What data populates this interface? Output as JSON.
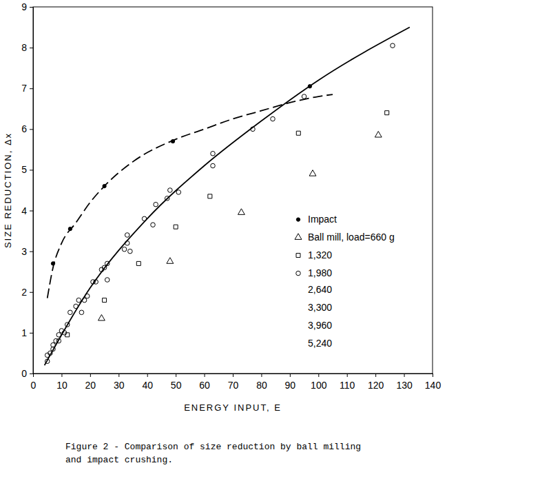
{
  "chart_data": {
    "type": "scatter",
    "title": [
      "Figure 2 - Comparison of size reduction by ball milling",
      "and impact crushing."
    ],
    "x_label": "ENERGY INPUT, E",
    "y_label": "SIZE REDUCTION, Δx",
    "xlim": [
      0,
      140
    ],
    "ylim": [
      0,
      9
    ],
    "xticks": [
      0,
      10,
      20,
      30,
      40,
      50,
      60,
      70,
      80,
      90,
      100,
      110,
      120,
      130,
      140
    ],
    "yticks": [
      0,
      1,
      2,
      3,
      4,
      5,
      6,
      7,
      8,
      9
    ],
    "legend": "right",
    "annotations": [
      "2,640",
      "3,300",
      "3,960",
      "5,240"
    ],
    "series": [
      {
        "name": "Impact",
        "type": "scatter",
        "marker": "dot",
        "color": "#000000",
        "x": [
          7,
          13,
          25,
          49,
          97
        ],
        "values": [
          2.7,
          3.55,
          4.6,
          5.7,
          7.05
        ]
      },
      {
        "name": "Ball mill, load=660 g",
        "type": "scatter",
        "marker": "triangle",
        "color": "#000000",
        "x": [
          24,
          48,
          73,
          98,
          121
        ],
        "values": [
          1.35,
          2.75,
          3.95,
          4.9,
          5.85
        ]
      },
      {
        "name": "1,320",
        "type": "scatter",
        "marker": "square",
        "color": "#000000",
        "x": [
          12,
          25,
          37,
          50,
          62,
          93,
          124
        ],
        "values": [
          0.95,
          1.8,
          2.7,
          3.6,
          4.35,
          5.9,
          6.4
        ]
      },
      {
        "name": "1,980",
        "type": "scatter",
        "marker": "circle",
        "color": "#000000",
        "x": [
          5,
          5,
          6,
          7,
          7,
          8,
          9,
          9,
          10,
          11,
          12,
          13,
          15,
          16,
          17,
          18,
          19,
          21,
          22,
          24,
          25,
          26,
          26,
          32,
          33,
          33,
          34,
          39,
          42,
          43,
          47,
          48,
          51,
          63,
          63,
          77,
          84,
          95,
          126
        ],
        "values": [
          0.3,
          0.45,
          0.5,
          0.6,
          0.7,
          0.8,
          0.8,
          0.95,
          1.05,
          1.0,
          1.2,
          1.5,
          1.65,
          1.8,
          1.5,
          1.8,
          1.9,
          2.25,
          2.25,
          2.55,
          2.6,
          2.7,
          2.3,
          3.05,
          3.2,
          3.4,
          3.0,
          3.8,
          3.65,
          4.15,
          4.3,
          4.5,
          4.45,
          5.1,
          5.4,
          6.0,
          6.25,
          6.8,
          8.05
        ]
      },
      {
        "type": "line",
        "line_style": "dashed",
        "color": "#000000",
        "x": [
          5,
          7,
          10,
          15,
          20,
          25,
          35,
          50,
          60,
          70,
          80,
          90,
          100,
          105
        ],
        "values": [
          1.85,
          2.6,
          3.2,
          3.7,
          4.2,
          4.6,
          5.2,
          5.75,
          6.0,
          6.25,
          6.45,
          6.65,
          6.8,
          6.85
        ]
      },
      {
        "type": "line",
        "line_style": "solid",
        "color": "#000000",
        "x": [
          4,
          20,
          40,
          60,
          80,
          100,
          132
        ],
        "values": [
          0.2,
          2.1,
          3.8,
          5.1,
          6.2,
          7.2,
          8.5
        ]
      }
    ]
  }
}
